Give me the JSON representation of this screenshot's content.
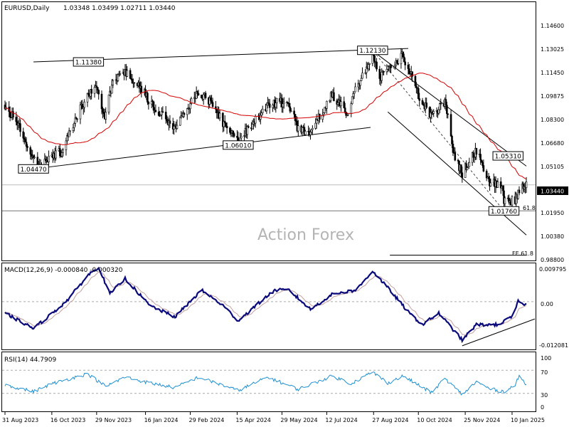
{
  "header": {
    "symbol": "EURUSD,Daily",
    "ohlc": "1.03348 1.03499 1.02711 1.03440"
  },
  "watermark": "Action Forex",
  "colors": {
    "candle": "#000000",
    "ma": "#d40000",
    "channel": "#000000",
    "macd_main": "#0a0a7a",
    "macd_signal": "#c4a0a0",
    "rsi": "#1e90d0",
    "grid": "#bbbbbb"
  },
  "main_panel": {
    "y_ticks": [
      "1.14600",
      "1.13025",
      "1.11450",
      "1.09875",
      "1.08300",
      "1.06680",
      "1.05105",
      "1.01950",
      "1.00380",
      "0.98800"
    ],
    "current_price": "1.03440",
    "annotations": [
      {
        "label": "1.11380",
        "price": 1.1138,
        "date": "2023-11-21"
      },
      {
        "label": "1.12130",
        "price": 1.1213,
        "date": "2024-08-26"
      },
      {
        "label": "1.06010",
        "price": 1.0601,
        "date": "2024-04-16"
      },
      {
        "label": "1.04470",
        "price": 1.0447,
        "date": "2023-09-28"
      },
      {
        "label": "1.05310",
        "price": 1.0531,
        "date": "2025-01-06"
      },
      {
        "label": "1.01760",
        "price": 1.0176,
        "date": "2025-01-02"
      }
    ],
    "small_labels": [
      "61.8",
      "FE 61.8"
    ]
  },
  "macd_panel": {
    "label": "MACD(12,26,9) -0.000840 -0.000320",
    "y_ticks": [
      "0.009795",
      "0.00",
      "-0.012081"
    ]
  },
  "rsi_panel": {
    "label": "RSI(14) 44.7909",
    "y_ticks": [
      "100",
      "70",
      "30",
      "0"
    ]
  },
  "x_axis": {
    "ticks": [
      "31 Aug 2023",
      "16 Oct 2023",
      "29 Nov 2023",
      "16 Jan 2024",
      "29 Feb 2024",
      "15 Apr 2024",
      "29 May 2024",
      "12 Jul 2024",
      "27 Aug 2024",
      "10 Oct 2024",
      "25 Nov 2024",
      "10 Jan 2025"
    ]
  },
  "chart_data": {
    "type": "candlestick",
    "title": "EURUSD,Daily",
    "period_start": "2023-08-31",
    "period_end": "2025-01-24",
    "close_anchors": [
      [
        "2023-08-31",
        1.086
      ],
      [
        "2023-09-14",
        1.072
      ],
      [
        "2023-09-28",
        1.052
      ],
      [
        "2023-10-04",
        1.046
      ],
      [
        "2023-10-16",
        1.054
      ],
      [
        "2023-10-26",
        1.056
      ],
      [
        "2023-11-03",
        1.07
      ],
      [
        "2023-11-16",
        1.087
      ],
      [
        "2023-11-28",
        1.099
      ],
      [
        "2023-12-07",
        1.079
      ],
      [
        "2023-12-14",
        1.099
      ],
      [
        "2023-12-27",
        1.108
      ],
      [
        "2024-01-12",
        1.096
      ],
      [
        "2024-01-25",
        1.084
      ],
      [
        "2024-02-14",
        1.072
      ],
      [
        "2024-03-08",
        1.094
      ],
      [
        "2024-03-21",
        1.088
      ],
      [
        "2024-04-01",
        1.074
      ],
      [
        "2024-04-16",
        1.062
      ],
      [
        "2024-05-03",
        1.076
      ],
      [
        "2024-05-16",
        1.087
      ],
      [
        "2024-06-04",
        1.088
      ],
      [
        "2024-06-14",
        1.07
      ],
      [
        "2024-06-26",
        1.069
      ],
      [
        "2024-07-17",
        1.093
      ],
      [
        "2024-08-01",
        1.08
      ],
      [
        "2024-08-08",
        1.094
      ],
      [
        "2024-08-26",
        1.119
      ],
      [
        "2024-09-03",
        1.104
      ],
      [
        "2024-09-17",
        1.113
      ],
      [
        "2024-09-25",
        1.118
      ],
      [
        "2024-10-10",
        1.093
      ],
      [
        "2024-10-23",
        1.078
      ],
      [
        "2024-11-05",
        1.089
      ],
      [
        "2024-11-14",
        1.053
      ],
      [
        "2024-11-22",
        1.042
      ],
      [
        "2024-12-06",
        1.057
      ],
      [
        "2024-12-19",
        1.036
      ],
      [
        "2024-12-31",
        1.035
      ],
      [
        "2025-01-02",
        1.024
      ],
      [
        "2025-01-13",
        1.024
      ],
      [
        "2025-01-17",
        1.03
      ],
      [
        "2025-01-24",
        1.0344
      ]
    ],
    "macd_anchors": [
      [
        "2023-08-31",
        -0.003
      ],
      [
        "2023-09-28",
        -0.007
      ],
      [
        "2023-10-12",
        -0.004
      ],
      [
        "2023-10-30",
        0.0
      ],
      [
        "2023-11-21",
        0.007
      ],
      [
        "2023-12-01",
        0.009
      ],
      [
        "2023-12-12",
        0.002
      ],
      [
        "2023-12-27",
        0.006
      ],
      [
        "2024-01-20",
        -0.001
      ],
      [
        "2024-02-14",
        -0.004
      ],
      [
        "2024-03-11",
        0.003
      ],
      [
        "2024-04-01",
        -0.001
      ],
      [
        "2024-04-16",
        -0.005
      ],
      [
        "2024-05-08",
        0.0
      ],
      [
        "2024-05-22",
        0.003
      ],
      [
        "2024-06-05",
        0.003
      ],
      [
        "2024-06-26",
        -0.002
      ],
      [
        "2024-07-18",
        0.002
      ],
      [
        "2024-08-10",
        0.003
      ],
      [
        "2024-08-26",
        0.008
      ],
      [
        "2024-09-12",
        0.003
      ],
      [
        "2024-10-01",
        -0.003
      ],
      [
        "2024-10-14",
        -0.006
      ],
      [
        "2024-10-30",
        -0.003
      ],
      [
        "2024-11-22",
        -0.01
      ],
      [
        "2024-12-06",
        -0.006
      ],
      [
        "2024-12-27",
        -0.006
      ],
      [
        "2025-01-10",
        -0.004
      ],
      [
        "2025-01-16",
        0.0
      ],
      [
        "2025-01-24",
        -0.0008
      ]
    ],
    "rsi_anchors": [
      [
        "2023-08-31",
        45
      ],
      [
        "2023-09-28",
        33
      ],
      [
        "2023-10-15",
        46
      ],
      [
        "2023-11-20",
        64
      ],
      [
        "2023-12-08",
        42
      ],
      [
        "2023-12-27",
        58
      ],
      [
        "2024-01-20",
        48
      ],
      [
        "2024-02-14",
        40
      ],
      [
        "2024-03-08",
        58
      ],
      [
        "2024-04-16",
        35
      ],
      [
        "2024-05-15",
        58
      ],
      [
        "2024-06-14",
        37
      ],
      [
        "2024-07-17",
        60
      ],
      [
        "2024-08-05",
        47
      ],
      [
        "2024-08-26",
        67
      ],
      [
        "2024-09-10",
        48
      ],
      [
        "2024-09-25",
        60
      ],
      [
        "2024-10-23",
        31
      ],
      [
        "2024-11-05",
        56
      ],
      [
        "2024-11-22",
        28
      ],
      [
        "2024-12-06",
        50
      ],
      [
        "2024-12-19",
        38
      ],
      [
        "2025-01-02",
        33
      ],
      [
        "2025-01-13",
        44
      ],
      [
        "2025-01-17",
        60
      ],
      [
        "2025-01-24",
        44.79
      ]
    ],
    "ma_period": 50,
    "trendlines": [
      {
        "name": "upper resistance",
        "points": [
          [
            "2023-09-28",
            1.1138
          ],
          [
            "2024-09-30",
            1.1225
          ]
        ]
      },
      {
        "name": "lower support",
        "points": [
          [
            "2023-09-28",
            1.0447
          ],
          [
            "2024-08-24",
            1.0715
          ]
        ]
      },
      {
        "name": "channel upper",
        "points": [
          [
            "2024-08-27",
            1.1205
          ],
          [
            "2025-01-24",
            1.0465
          ]
        ]
      },
      {
        "name": "channel lower",
        "points": [
          [
            "2024-09-10",
            1.0815
          ],
          [
            "2025-01-24",
            1.002
          ]
        ]
      },
      {
        "name": "fe 61.8",
        "points": [
          [
            "2024-09-12",
            0.989
          ],
          [
            "2025-01-24",
            0.989
          ]
        ]
      }
    ],
    "macd_trendline": [
      [
        "2024-11-22",
        -0.0115
      ],
      [
        "2025-01-24",
        -0.0045
      ]
    ],
    "macd_ylim": [
      -0.012081,
      0.009795
    ],
    "rsi_ylim": [
      0,
      100
    ],
    "price_ylim": [
      0.986,
      1.1515
    ],
    "hlines": [
      1.0344,
      1.0176
    ]
  }
}
